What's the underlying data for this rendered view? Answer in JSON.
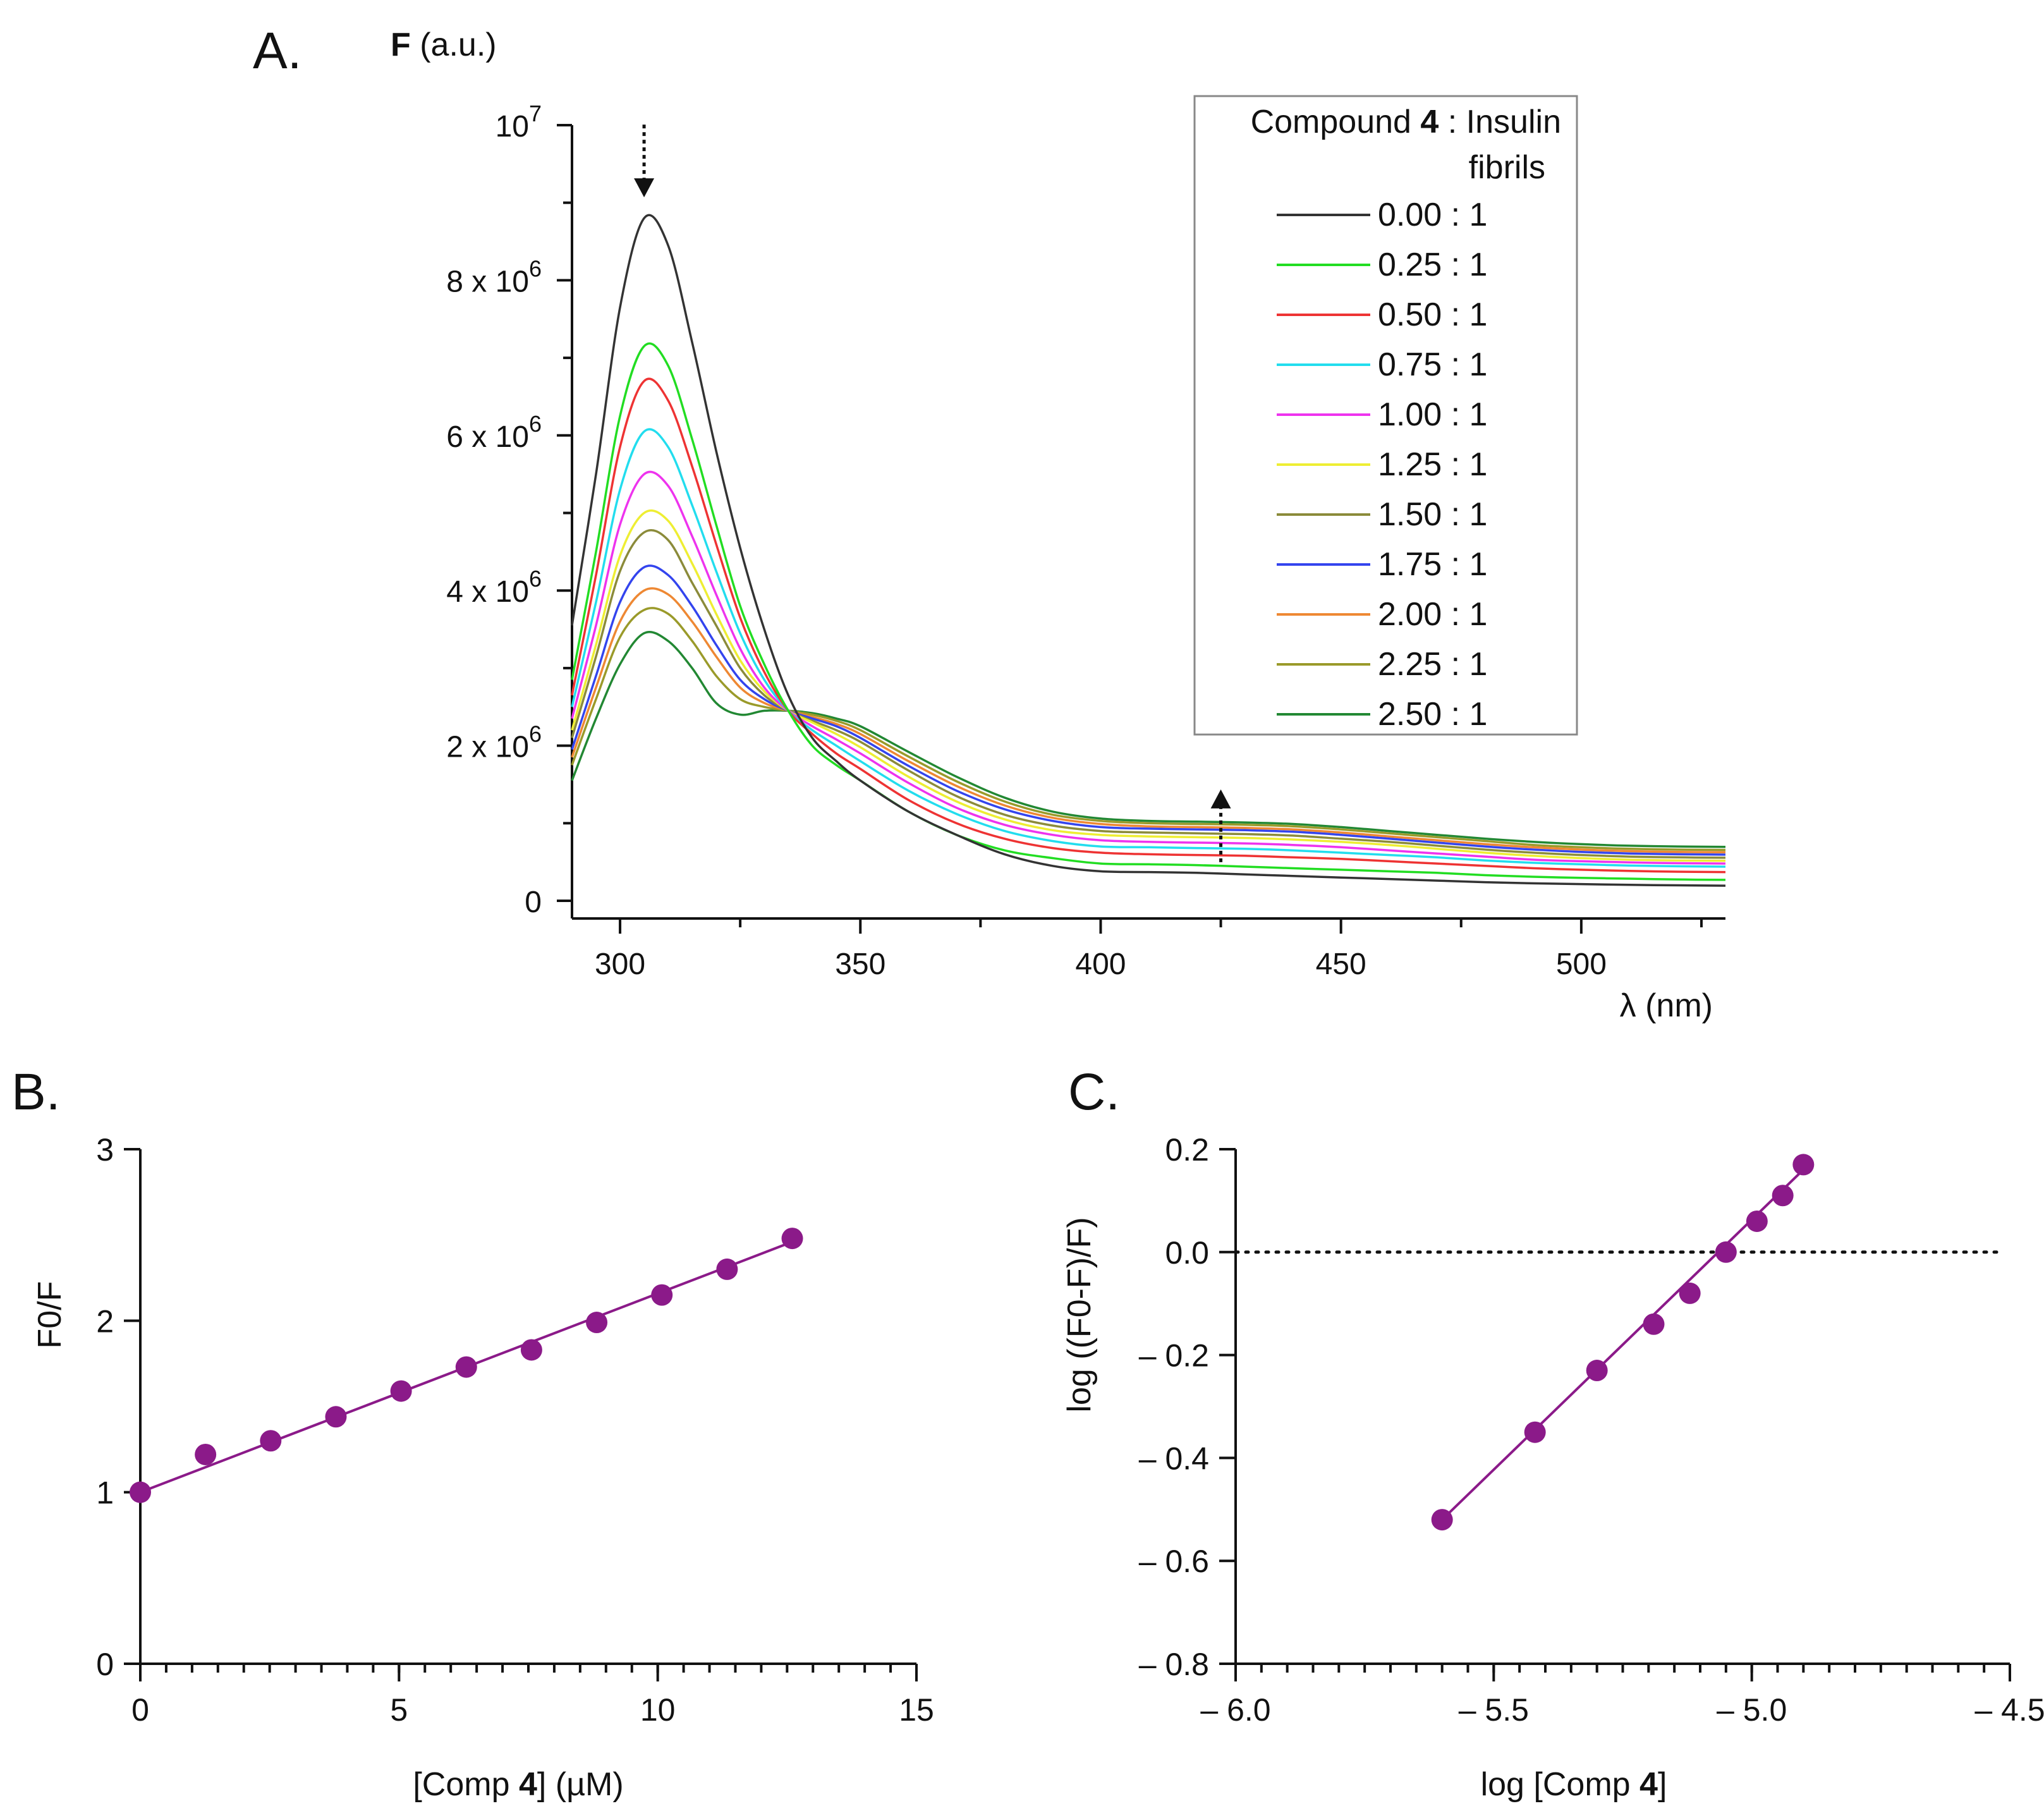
{
  "chart_data": [
    {
      "panel": "A.",
      "type": "line",
      "ylabel": {
        "bold": "F",
        "rest": " (a.u.)"
      },
      "xlabel": "λ (nm)",
      "xlim": [
        290,
        530
      ],
      "ylim": [
        0,
        10000000
      ],
      "x_ticks": [
        "300",
        "350",
        "400",
        "450",
        "500"
      ],
      "x_tick_values": [
        300,
        350,
        400,
        450,
        500
      ],
      "y_ticks": [
        {
          "value": 0,
          "base": "0",
          "exp": ""
        },
        {
          "value": 2000000,
          "base": "2 x 10",
          "exp": "6"
        },
        {
          "value": 4000000,
          "base": "4 x 10",
          "exp": "6"
        },
        {
          "value": 6000000,
          "base": "6 x 10",
          "exp": "6"
        },
        {
          "value": 8000000,
          "base": "8 x 10",
          "exp": "6"
        },
        {
          "value": 10000000,
          "base": "10",
          "exp": "7"
        }
      ],
      "legend_title": {
        "prefix": "Compound ",
        "bold": "4",
        "suffix": " : Insulin",
        "line2": "fibrils"
      },
      "legend_position": "top-right",
      "annotations": [
        {
          "type": "dotted-arrow-down",
          "x": 305,
          "y": 9600000
        },
        {
          "type": "dotted-arrow-up",
          "x": 425,
          "y": 1150000
        }
      ],
      "x": [
        290,
        295,
        300,
        305,
        310,
        315,
        320,
        325,
        330,
        335,
        340,
        345,
        350,
        360,
        370,
        380,
        390,
        400,
        410,
        420,
        430,
        440,
        450,
        460,
        470,
        480,
        490,
        500,
        510,
        520,
        530
      ],
      "series": [
        {
          "name": "0.00 : 1",
          "color": "#333333",
          "values": [
            3550000,
            5500000,
            7650000,
            8800000,
            8450000,
            7200000,
            5800000,
            4550000,
            3500000,
            2650000,
            2100000,
            1800000,
            1550000,
            1150000,
            850000,
            600000,
            450000,
            380000,
            370000,
            360000,
            340000,
            320000,
            300000,
            280000,
            260000,
            240000,
            225000,
            215000,
            205000,
            200000,
            195000
          ]
        },
        {
          "name": "0.25 : 1",
          "color": "#22dd22",
          "values": [
            2850000,
            4500000,
            6250000,
            7150000,
            6900000,
            5950000,
            4850000,
            3800000,
            3050000,
            2450000,
            2000000,
            1750000,
            1550000,
            1150000,
            850000,
            650000,
            550000,
            480000,
            470000,
            460000,
            440000,
            420000,
            400000,
            380000,
            360000,
            330000,
            310000,
            295000,
            285000,
            275000,
            270000
          ]
        },
        {
          "name": "0.50 : 1",
          "color": "#ee3333",
          "values": [
            2650000,
            4200000,
            5850000,
            6700000,
            6450000,
            5600000,
            4600000,
            3650000,
            2950000,
            2450000,
            2150000,
            1900000,
            1700000,
            1300000,
            1000000,
            800000,
            680000,
            620000,
            600000,
            590000,
            580000,
            560000,
            540000,
            510000,
            480000,
            450000,
            420000,
            400000,
            385000,
            375000,
            370000
          ]
        },
        {
          "name": "0.75 : 1",
          "color": "#22ddee",
          "values": [
            2500000,
            3850000,
            5300000,
            6050000,
            5850000,
            5100000,
            4250000,
            3450000,
            2850000,
            2450000,
            2200000,
            2000000,
            1800000,
            1420000,
            1120000,
            900000,
            770000,
            700000,
            690000,
            680000,
            670000,
            650000,
            620000,
            590000,
            560000,
            520000,
            490000,
            470000,
            455000,
            445000,
            440000
          ]
        },
        {
          "name": "1.00 : 1",
          "color": "#ee33ee",
          "values": [
            2350000,
            3550000,
            4850000,
            5500000,
            5350000,
            4700000,
            3950000,
            3250000,
            2750000,
            2450000,
            2250000,
            2080000,
            1900000,
            1520000,
            1200000,
            980000,
            850000,
            780000,
            760000,
            750000,
            740000,
            720000,
            690000,
            650000,
            610000,
            570000,
            530000,
            510000,
            495000,
            485000,
            480000
          ]
        },
        {
          "name": "1.25 : 1",
          "color": "#eeee33",
          "values": [
            2200000,
            3300000,
            4450000,
            5000000,
            4900000,
            4350000,
            3700000,
            3100000,
            2700000,
            2450000,
            2300000,
            2150000,
            1980000,
            1600000,
            1280000,
            1050000,
            910000,
            850000,
            830000,
            820000,
            810000,
            790000,
            760000,
            720000,
            670000,
            620000,
            580000,
            550000,
            530000,
            520000,
            515000
          ]
        },
        {
          "name": "1.50 : 1",
          "color": "#8b8b3a",
          "values": [
            2100000,
            3150000,
            4250000,
            4750000,
            4650000,
            4100000,
            3550000,
            3000000,
            2650000,
            2450000,
            2320000,
            2200000,
            2050000,
            1680000,
            1350000,
            1110000,
            970000,
            900000,
            880000,
            870000,
            860000,
            840000,
            800000,
            760000,
            710000,
            660000,
            620000,
            590000,
            570000,
            560000,
            555000
          ]
        },
        {
          "name": "1.75 : 1",
          "color": "#3344ee",
          "values": [
            1950000,
            2900000,
            3850000,
            4300000,
            4200000,
            3800000,
            3300000,
            2850000,
            2600000,
            2450000,
            2350000,
            2250000,
            2100000,
            1740000,
            1420000,
            1180000,
            1030000,
            950000,
            930000,
            920000,
            910000,
            890000,
            850000,
            800000,
            750000,
            700000,
            660000,
            630000,
            610000,
            600000,
            595000
          ]
        },
        {
          "name": "2.00 : 1",
          "color": "#ee8833",
          "values": [
            1850000,
            2750000,
            3600000,
            4000000,
            3950000,
            3600000,
            3150000,
            2750000,
            2550000,
            2450000,
            2370000,
            2280000,
            2150000,
            1800000,
            1480000,
            1230000,
            1070000,
            990000,
            960000,
            950000,
            940000,
            920000,
            880000,
            830000,
            780000,
            730000,
            690000,
            660000,
            640000,
            630000,
            625000
          ]
        },
        {
          "name": "2.25 : 1",
          "color": "#9a9a2a",
          "values": [
            1750000,
            2600000,
            3400000,
            3750000,
            3700000,
            3350000,
            2900000,
            2600000,
            2500000,
            2450000,
            2400000,
            2320000,
            2200000,
            1860000,
            1540000,
            1280000,
            1110000,
            1030000,
            1000000,
            990000,
            980000,
            960000,
            920000,
            870000,
            820000,
            770000,
            720000,
            690000,
            670000,
            660000,
            655000
          ]
        },
        {
          "name": "2.50 : 1",
          "color": "#228833",
          "values": [
            1550000,
            2350000,
            3050000,
            3450000,
            3350000,
            3000000,
            2550000,
            2400000,
            2450000,
            2450000,
            2420000,
            2350000,
            2250000,
            1920000,
            1600000,
            1330000,
            1150000,
            1060000,
            1030000,
            1020000,
            1010000,
            990000,
            950000,
            900000,
            850000,
            800000,
            760000,
            730000,
            710000,
            700000,
            695000
          ]
        }
      ]
    },
    {
      "panel": "B.",
      "type": "scatter",
      "xlabel": {
        "prefix": "[Comp ",
        "bold": "4",
        "suffix": "] (µM)"
      },
      "ylabel": "F0/F",
      "xlim": [
        0,
        15
      ],
      "ylim": [
        0,
        3
      ],
      "x_ticks": [
        "0",
        "5",
        "10",
        "15"
      ],
      "x_tick_values": [
        0,
        5,
        10,
        15
      ],
      "y_ticks": [
        "0",
        "1",
        "2",
        "3"
      ],
      "y_tick_values": [
        0,
        1,
        2,
        3
      ],
      "marker_color": "#8b1a89",
      "points": {
        "x": [
          0,
          1.26,
          2.52,
          3.78,
          5.04,
          6.3,
          7.56,
          8.82,
          10.08,
          11.34,
          12.6
        ],
        "y": [
          1.0,
          1.22,
          1.3,
          1.44,
          1.59,
          1.73,
          1.83,
          1.99,
          2.15,
          2.3,
          2.48
        ]
      },
      "fit": {
        "x": [
          0,
          12.6
        ],
        "y": [
          1.0,
          2.46
        ]
      }
    },
    {
      "panel": "C.",
      "type": "scatter",
      "xlabel": {
        "prefix": "log [Comp ",
        "bold": "4",
        "suffix": "]"
      },
      "ylabel": "log ((F0-F)/F)",
      "xlim": [
        -6.0,
        -4.5
      ],
      "ylim": [
        -0.8,
        0.2
      ],
      "x_ticks": [
        "– 6.0",
        "– 5.5",
        "– 5.0",
        "– 4.5"
      ],
      "x_tick_values": [
        -6.0,
        -5.5,
        -5.0,
        -4.5
      ],
      "y_ticks": [
        "– 0.8",
        "– 0.6",
        "– 0.4",
        "– 0.2",
        "0.0",
        "0.2"
      ],
      "y_tick_values": [
        -0.8,
        -0.6,
        -0.4,
        -0.2,
        0.0,
        0.2
      ],
      "reference_line_y": 0.0,
      "marker_color": "#8b1a89",
      "points": {
        "x": [
          -5.6,
          -5.42,
          -5.3,
          -5.19,
          -5.12,
          -5.05,
          -4.99,
          -4.94,
          -4.9
        ],
        "y": [
          -0.52,
          -0.35,
          -0.23,
          -0.14,
          -0.08,
          0.0,
          0.06,
          0.11,
          0.17
        ]
      },
      "fit": {
        "x": [
          -5.6,
          -4.89
        ],
        "y": [
          -0.52,
          0.17
        ]
      }
    }
  ]
}
